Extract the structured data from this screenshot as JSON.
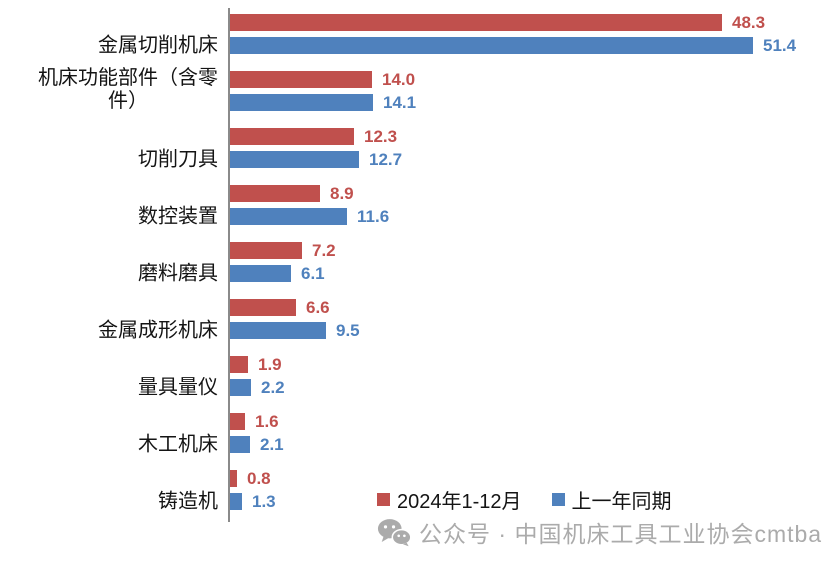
{
  "chart_data": {
    "type": "bar",
    "orientation": "horizontal",
    "title": "",
    "xlabel": "",
    "ylabel": "",
    "xlim": [
      0,
      59
    ],
    "grid": false,
    "legend_position": "bottom",
    "value_labels": true,
    "categories": [
      "金属切削机床",
      "机床功能部件（含零\n件）",
      "切削刀具",
      "数控装置",
      "磨料磨具",
      "金属成形机床",
      "量具量仪",
      "木工机床",
      "铸造机"
    ],
    "series": [
      {
        "name": "2024年1-12月",
        "color": "#c0504d",
        "values": [
          48.3,
          14.0,
          12.3,
          8.9,
          7.2,
          6.6,
          1.9,
          1.6,
          0.8
        ]
      },
      {
        "name": "上一年同期",
        "color": "#4f81bd",
        "values": [
          51.4,
          14.1,
          12.7,
          11.6,
          6.1,
          9.5,
          2.2,
          2.1,
          1.3
        ]
      }
    ]
  },
  "axis": {
    "line_color": "#8a8a8a"
  },
  "footer": {
    "text": "公众号 · 中国机床工具工业协会cmtba",
    "color": "#ababab",
    "icon": "wechat-icon"
  }
}
